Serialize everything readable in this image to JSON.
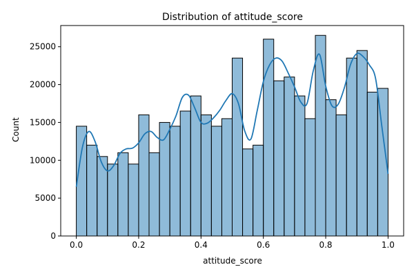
{
  "chart_data": {
    "type": "bar",
    "title": "Distribution of attitude_score",
    "xlabel": "attitude_score",
    "ylabel": "Count",
    "xlim": [
      -0.05,
      1.05
    ],
    "ylim": [
      0,
      27800
    ],
    "xticks": [
      0.0,
      0.2,
      0.4,
      0.6,
      0.8,
      1.0
    ],
    "xtick_labels": [
      "0.0",
      "0.2",
      "0.4",
      "0.6",
      "0.8",
      "1.0"
    ],
    "yticks": [
      0,
      5000,
      10000,
      15000,
      20000,
      25000
    ],
    "ytick_labels": [
      "0",
      "5000",
      "10000",
      "15000",
      "20000",
      "25000"
    ],
    "grid": false,
    "bin_edges": [
      0.0,
      0.0333,
      0.0667,
      0.1,
      0.1333,
      0.1667,
      0.2,
      0.2333,
      0.2667,
      0.3,
      0.3333,
      0.3667,
      0.4,
      0.4333,
      0.4667,
      0.5,
      0.5333,
      0.5667,
      0.6,
      0.6333,
      0.6667,
      0.7,
      0.7333,
      0.7667,
      0.8,
      0.8333,
      0.8667,
      0.9,
      0.9333,
      0.9667,
      1.0
    ],
    "counts": [
      14500,
      12000,
      10500,
      9500,
      11000,
      9500,
      16000,
      11000,
      15000,
      14500,
      16500,
      18500,
      16000,
      14500,
      15500,
      23500,
      11500,
      12000,
      26000,
      20500,
      21000,
      18500,
      15500,
      26500,
      18000,
      16000,
      23500,
      24500,
      19000,
      19500
    ],
    "kde": {
      "x": [
        0.0,
        0.02,
        0.04,
        0.06,
        0.08,
        0.1,
        0.12,
        0.14,
        0.16,
        0.18,
        0.2,
        0.22,
        0.24,
        0.26,
        0.28,
        0.3,
        0.32,
        0.34,
        0.36,
        0.38,
        0.4,
        0.42,
        0.44,
        0.46,
        0.48,
        0.5,
        0.52,
        0.54,
        0.56,
        0.58,
        0.6,
        0.62,
        0.64,
        0.66,
        0.68,
        0.7,
        0.72,
        0.74,
        0.76,
        0.78,
        0.8,
        0.82,
        0.84,
        0.86,
        0.88,
        0.9,
        0.92,
        0.94,
        0.96,
        0.98,
        1.0
      ],
      "y": [
        6500,
        11800,
        13800,
        12500,
        9800,
        8600,
        9300,
        10900,
        11500,
        11600,
        12300,
        13500,
        13800,
        13000,
        12700,
        14100,
        15900,
        18300,
        18600,
        16900,
        15000,
        14900,
        15600,
        16600,
        17900,
        18800,
        17500,
        13900,
        12800,
        16500,
        20400,
        22600,
        23500,
        23100,
        21500,
        19700,
        17700,
        17500,
        21800,
        24000,
        19800,
        17200,
        17400,
        19600,
        22700,
        24100,
        23700,
        22600,
        20800,
        14500,
        8200
      ]
    },
    "bar_color": "#1f77b4",
    "bar_alpha": 0.5,
    "kde_color": "#1f77b4"
  }
}
